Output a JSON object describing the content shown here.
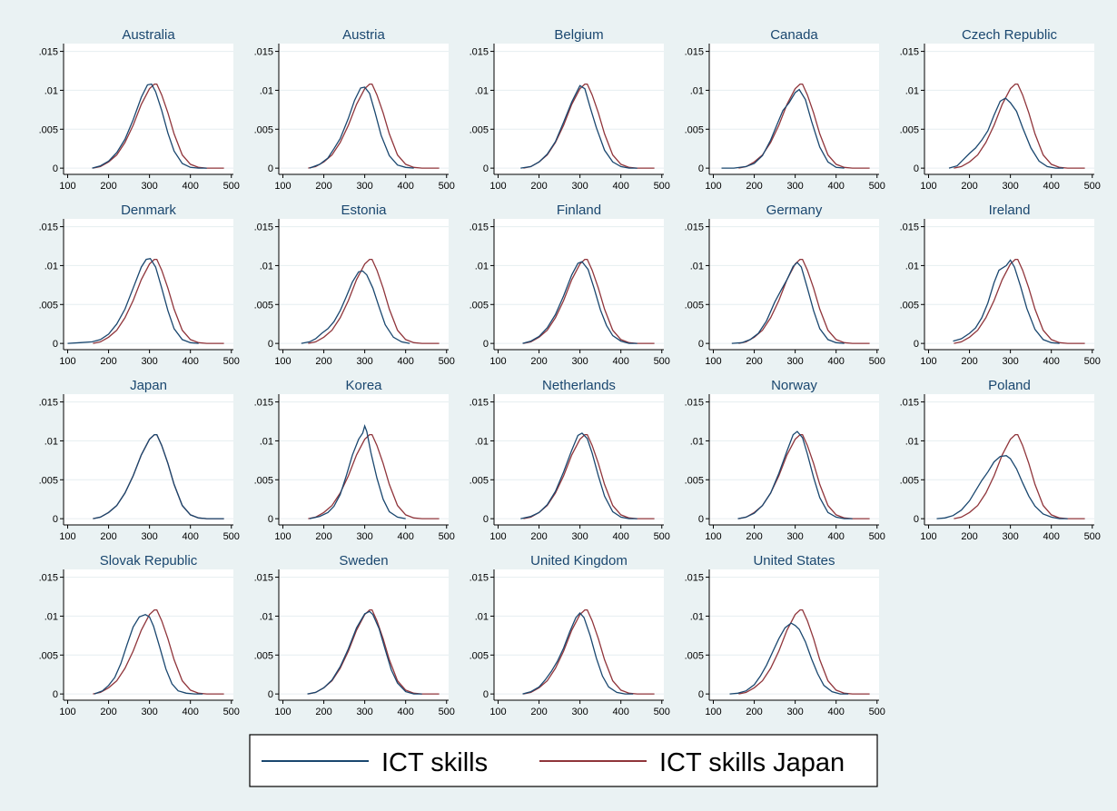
{
  "colors": {
    "background": "#eaf2f3",
    "panel": "#ffffff",
    "title": "#1a476f",
    "series_ict": "#1a476f",
    "series_japan": "#90353b",
    "axis": "#000000",
    "grid": "#e6eef0"
  },
  "legend": {
    "position": "bottom-center",
    "items": [
      {
        "label": "ICT skills",
        "color": "#1a476f"
      },
      {
        "label": "ICT skills Japan",
        "color": "#90353b"
      }
    ]
  },
  "chart_data": {
    "type": "line",
    "layout": "small-multiples",
    "grid": true,
    "x_ticks": [
      100,
      200,
      300,
      400,
      500
    ],
    "y_ticks": [
      0,
      0.005,
      0.01,
      0.015
    ],
    "y_tick_labels": [
      "0",
      ".005",
      ".01",
      ".015"
    ],
    "xlim": [
      90,
      505
    ],
    "ylim": [
      -0.0008,
      0.016
    ],
    "reference_series": {
      "name": "ICT skills Japan",
      "x": [
        162,
        180,
        200,
        220,
        240,
        260,
        280,
        300,
        312,
        318,
        330,
        345,
        360,
        380,
        400,
        420,
        440,
        460,
        482
      ],
      "y": [
        0.0,
        0.0002,
        0.0008,
        0.0017,
        0.0033,
        0.0055,
        0.0082,
        0.0102,
        0.0108,
        0.0108,
        0.0094,
        0.0071,
        0.0044,
        0.0017,
        0.0005,
        0.0001,
        0.0,
        0.0,
        0.0
      ]
    },
    "panels": [
      {
        "title": "Australia",
        "series": [
          {
            "name": "ICT skills",
            "x": [
              160,
              180,
              200,
              220,
              240,
              260,
              280,
              295,
              305,
              315,
              330,
              345,
              360,
              380,
              400,
              420,
              440
            ],
            "y": [
              0.0,
              0.0003,
              0.0009,
              0.002,
              0.0037,
              0.0062,
              0.0091,
              0.0107,
              0.0108,
              0.0098,
              0.0074,
              0.0045,
              0.0022,
              0.0006,
              0.0001,
              0.0,
              0.0
            ]
          }
        ]
      },
      {
        "title": "Austria",
        "series": [
          {
            "name": "ICT skills",
            "x": [
              165,
              190,
              210,
              225,
              240,
              260,
              275,
              290,
              300,
              312,
              325,
              340,
              360,
              380,
              400,
              420
            ],
            "y": [
              0.0,
              0.0005,
              0.0013,
              0.0025,
              0.0038,
              0.0064,
              0.0087,
              0.0103,
              0.0104,
              0.0096,
              0.0072,
              0.0042,
              0.0016,
              0.0004,
              0.0001,
              0.0
            ]
          }
        ]
      },
      {
        "title": "Belgium",
        "series": [
          {
            "name": "ICT skills",
            "x": [
              155,
              180,
              200,
              220,
              240,
              260,
              280,
              300,
              312,
              325,
              340,
              360,
              380,
              400,
              420,
              440
            ],
            "y": [
              0.0,
              0.0002,
              0.0008,
              0.0018,
              0.0034,
              0.0059,
              0.0085,
              0.0106,
              0.0102,
              0.0078,
              0.0052,
              0.0023,
              0.0008,
              0.0002,
              0.0,
              0.0
            ]
          }
        ]
      },
      {
        "title": "Canada",
        "series": [
          {
            "name": "ICT skills",
            "x": [
              120,
              150,
              180,
              200,
              220,
              240,
              255,
              270,
              285,
              300,
              310,
              325,
              340,
              360,
              380,
              400,
              420
            ],
            "y": [
              0.0,
              0.0,
              0.0002,
              0.0006,
              0.0016,
              0.0036,
              0.0055,
              0.0074,
              0.0084,
              0.0097,
              0.0101,
              0.0088,
              0.006,
              0.0027,
              0.0008,
              0.0001,
              0.0
            ]
          }
        ]
      },
      {
        "title": "Czech Republic",
        "series": [
          {
            "name": "ICT skills",
            "x": [
              150,
              170,
              185,
              200,
              215,
              230,
              245,
              260,
              275,
              288,
              300,
              315,
              330,
              350,
              370,
              390,
              410,
              430
            ],
            "y": [
              0.0,
              0.0003,
              0.0011,
              0.0019,
              0.0026,
              0.0036,
              0.0048,
              0.0068,
              0.0086,
              0.009,
              0.0084,
              0.0073,
              0.0052,
              0.0026,
              0.0009,
              0.0002,
              0.0,
              0.0
            ]
          }
        ]
      },
      {
        "title": "Denmark",
        "series": [
          {
            "name": "ICT skills",
            "x": [
              100,
              130,
              160,
              180,
              200,
              220,
              240,
              260,
              280,
              292,
              302,
              315,
              330,
              345,
              360,
              380,
              400,
              420
            ],
            "y": [
              0.0,
              0.0001,
              0.0002,
              0.0005,
              0.0012,
              0.0025,
              0.0044,
              0.0071,
              0.0098,
              0.0108,
              0.0109,
              0.0098,
              0.0071,
              0.0042,
              0.0019,
              0.0005,
              0.0001,
              0.0
            ]
          }
        ]
      },
      {
        "title": "Estonia",
        "series": [
          {
            "name": "ICT skills",
            "x": [
              145,
              165,
              180,
              195,
              210,
              225,
              240,
              255,
              270,
              285,
              295,
              305,
              320,
              335,
              350,
              370,
              390,
              410
            ],
            "y": [
              0.0,
              0.0002,
              0.0006,
              0.0013,
              0.0019,
              0.0028,
              0.0042,
              0.006,
              0.0079,
              0.0092,
              0.0093,
              0.0088,
              0.0071,
              0.0047,
              0.0024,
              0.0008,
              0.0002,
              0.0
            ]
          }
        ]
      },
      {
        "title": "Finland",
        "series": [
          {
            "name": "ICT skills",
            "x": [
              160,
              180,
              200,
              220,
              240,
              260,
              280,
              295,
              305,
              320,
              335,
              350,
              365,
              380,
              400,
              420,
              440
            ],
            "y": [
              0.0,
              0.0003,
              0.0009,
              0.002,
              0.0037,
              0.0061,
              0.0088,
              0.0103,
              0.0105,
              0.0095,
              0.007,
              0.0043,
              0.0023,
              0.001,
              0.0003,
              0.0,
              0.0
            ]
          }
        ]
      },
      {
        "title": "Germany",
        "series": [
          {
            "name": "ICT skills",
            "x": [
              145,
              170,
              190,
              210,
              230,
              250,
              265,
              280,
              295,
              305,
              315,
              330,
              345,
              360,
              380,
              400,
              420
            ],
            "y": [
              0.0,
              0.0001,
              0.0005,
              0.0013,
              0.0029,
              0.0053,
              0.0068,
              0.0082,
              0.0099,
              0.0104,
              0.0098,
              0.0071,
              0.0042,
              0.0019,
              0.0005,
              0.0001,
              0.0
            ]
          }
        ]
      },
      {
        "title": "Ireland",
        "series": [
          {
            "name": "ICT skills",
            "x": [
              160,
              180,
              200,
              215,
              230,
              245,
              260,
              272,
              290,
              300,
              310,
              325,
              340,
              360,
              380,
              400,
              420
            ],
            "y": [
              0.0003,
              0.0006,
              0.0013,
              0.002,
              0.0033,
              0.0052,
              0.0078,
              0.0094,
              0.01,
              0.0107,
              0.0098,
              0.0073,
              0.0045,
              0.0018,
              0.0005,
              0.0001,
              0.0
            ]
          }
        ]
      },
      {
        "title": "Japan",
        "series": [
          {
            "name": "ICT skills",
            "x": [
              162,
              180,
              200,
              220,
              240,
              260,
              280,
              300,
              312,
              318,
              330,
              345,
              360,
              380,
              400,
              420,
              440,
              460,
              482
            ],
            "y": [
              0.0,
              0.0002,
              0.0008,
              0.0017,
              0.0033,
              0.0055,
              0.0082,
              0.0102,
              0.0108,
              0.0108,
              0.0094,
              0.0071,
              0.0044,
              0.0017,
              0.0005,
              0.0001,
              0.0,
              0.0,
              0.0
            ]
          }
        ]
      },
      {
        "title": "Korea",
        "series": [
          {
            "name": "ICT skills",
            "x": [
              165,
              190,
              210,
              225,
              240,
              255,
              270,
              285,
              295,
              300,
              305,
              315,
              330,
              345,
              360,
              380,
              400
            ],
            "y": [
              0.0,
              0.0003,
              0.0008,
              0.0016,
              0.0031,
              0.0055,
              0.0082,
              0.0102,
              0.011,
              0.0119,
              0.0112,
              0.0085,
              0.0052,
              0.0025,
              0.0009,
              0.0002,
              0.0
            ]
          }
        ]
      },
      {
        "title": "Netherlands",
        "series": [
          {
            "name": "ICT skills",
            "x": [
              155,
              180,
              200,
              220,
              240,
              260,
              280,
              295,
              305,
              318,
              330,
              345,
              360,
              380,
              400,
              420,
              440
            ],
            "y": [
              0.0,
              0.0003,
              0.0008,
              0.0018,
              0.0035,
              0.006,
              0.0088,
              0.0107,
              0.011,
              0.0103,
              0.0084,
              0.0055,
              0.0029,
              0.0009,
              0.0002,
              0.0,
              0.0
            ]
          }
        ]
      },
      {
        "title": "Norway",
        "series": [
          {
            "name": "ICT skills",
            "x": [
              160,
              180,
              200,
              220,
              240,
              260,
              280,
              295,
              305,
              318,
              330,
              345,
              360,
              380,
              400,
              420,
              440
            ],
            "y": [
              0.0,
              0.0002,
              0.0007,
              0.0017,
              0.0033,
              0.0058,
              0.0087,
              0.0108,
              0.0112,
              0.0104,
              0.0083,
              0.0053,
              0.0027,
              0.0008,
              0.0002,
              0.0,
              0.0
            ]
          }
        ]
      },
      {
        "title": "Poland",
        "series": [
          {
            "name": "ICT skills",
            "x": [
              120,
              140,
              160,
              180,
              200,
              215,
              230,
              245,
              260,
              275,
              290,
              300,
              315,
              330,
              345,
              360,
              380,
              400,
              420,
              440
            ],
            "y": [
              0.0,
              0.0001,
              0.0004,
              0.0011,
              0.0023,
              0.0036,
              0.0049,
              0.006,
              0.0073,
              0.008,
              0.0081,
              0.0077,
              0.0064,
              0.0046,
              0.0029,
              0.0016,
              0.0006,
              0.0002,
              0.0,
              0.0
            ]
          }
        ]
      },
      {
        "title": "Slovak Republic",
        "series": [
          {
            "name": "ICT skills",
            "x": [
              165,
              185,
              200,
              215,
              230,
              245,
              260,
              275,
              290,
              300,
              310,
              325,
              340,
              355,
              370,
              390,
              410,
              430
            ],
            "y": [
              0.0,
              0.0004,
              0.0011,
              0.0021,
              0.0039,
              0.0063,
              0.0086,
              0.0099,
              0.0102,
              0.0099,
              0.0087,
              0.006,
              0.0032,
              0.0013,
              0.0004,
              0.0001,
              0.0,
              0.0
            ]
          }
        ]
      },
      {
        "title": "Sweden",
        "series": [
          {
            "name": "ICT skills",
            "x": [
              160,
              180,
              200,
              220,
              240,
              260,
              280,
              300,
              312,
              320,
              335,
              350,
              365,
              380,
              400,
              420,
              440
            ],
            "y": [
              0.0,
              0.0002,
              0.0008,
              0.0018,
              0.0035,
              0.0058,
              0.0085,
              0.0103,
              0.0106,
              0.0102,
              0.0084,
              0.0057,
              0.0031,
              0.0014,
              0.0003,
              0.0,
              0.0
            ]
          }
        ]
      },
      {
        "title": "United Kingdom",
        "series": [
          {
            "name": "ICT skills",
            "x": [
              160,
              180,
              200,
              215,
              230,
              245,
              260,
              275,
              290,
              300,
              310,
              325,
              340,
              355,
              370,
              390,
              410,
              430
            ],
            "y": [
              0.0,
              0.0003,
              0.0009,
              0.0018,
              0.0029,
              0.0042,
              0.0059,
              0.008,
              0.0098,
              0.0104,
              0.0098,
              0.0075,
              0.0046,
              0.0023,
              0.0009,
              0.0002,
              0.0,
              0.0
            ]
          }
        ]
      },
      {
        "title": "United States",
        "series": [
          {
            "name": "ICT skills",
            "x": [
              140,
              160,
              180,
              200,
              215,
              230,
              245,
              260,
              275,
              290,
              300,
              310,
              325,
              340,
              355,
              370,
              390,
              410,
              430
            ],
            "y": [
              0.0,
              0.0001,
              0.0004,
              0.0012,
              0.0023,
              0.0037,
              0.0054,
              0.0071,
              0.0085,
              0.0091,
              0.0088,
              0.0083,
              0.0067,
              0.0045,
              0.0026,
              0.0011,
              0.0003,
              0.0,
              0.0
            ]
          }
        ]
      }
    ]
  }
}
